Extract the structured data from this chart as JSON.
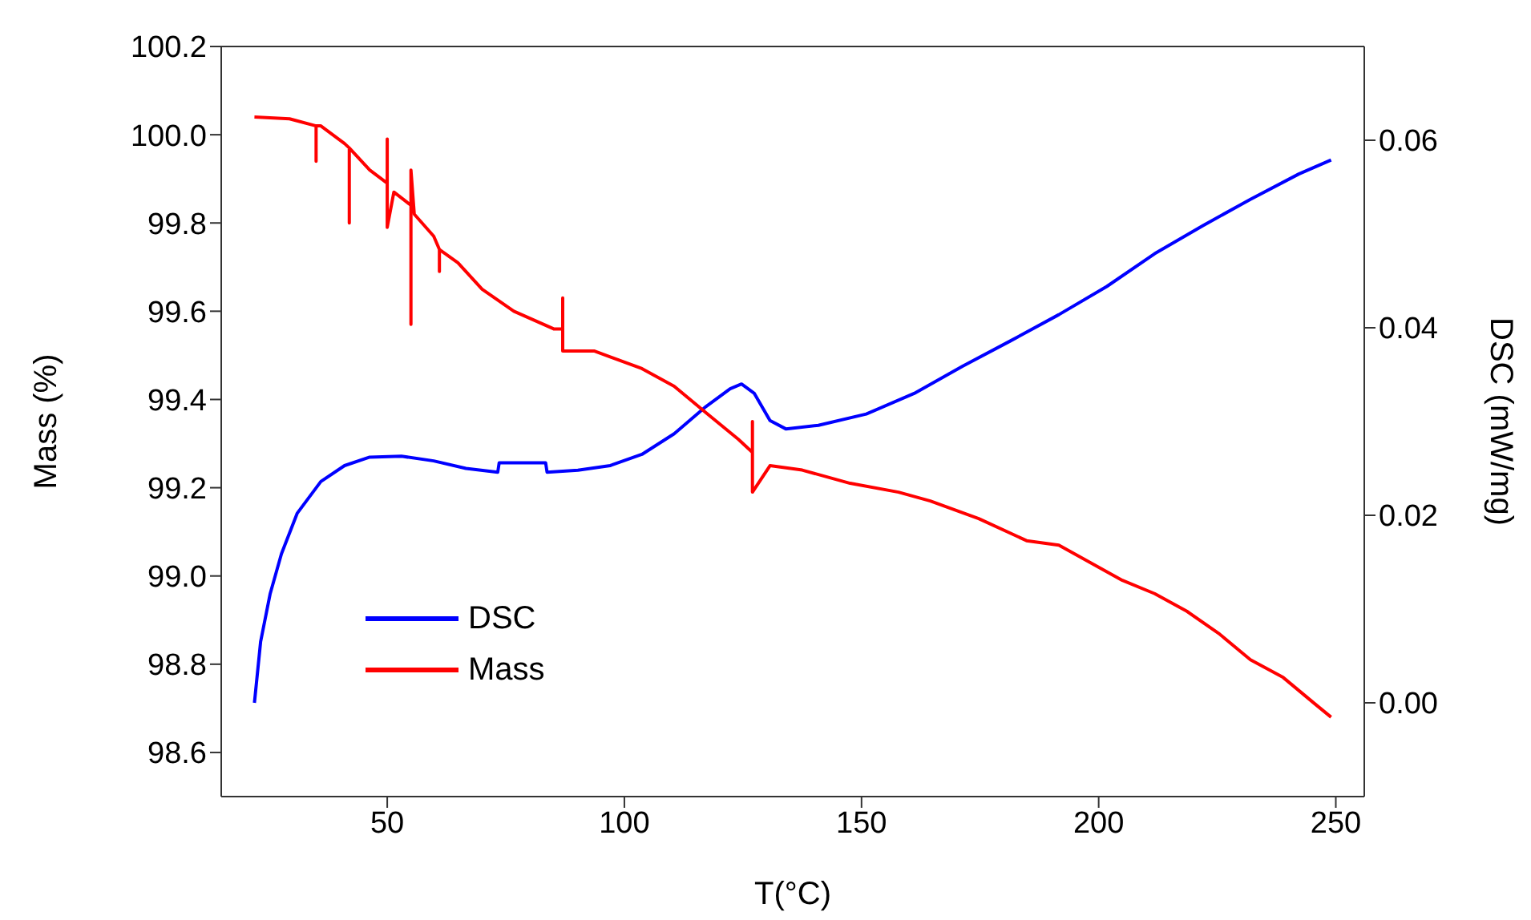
{
  "chart_data": {
    "type": "line",
    "xlabel": "T(°C)",
    "ylabel": "Mass (%)",
    "y2label": "DSC (mW/mg)",
    "xlim": [
      15,
      256
    ],
    "xticks": [
      50,
      100,
      150,
      200,
      250
    ],
    "ylim": [
      98.5,
      100.2
    ],
    "yticks": [
      {
        "value": 98.6,
        "label": "98.6"
      },
      {
        "value": 98.8,
        "label": "98.8"
      },
      {
        "value": 99,
        "label": "99.0"
      },
      {
        "value": 99.2,
        "label": "99.2"
      },
      {
        "value": 99.4,
        "label": "99.4"
      },
      {
        "value": 99.6,
        "label": "99.6"
      },
      {
        "value": 99.8,
        "label": "99.8"
      },
      {
        "value": 100,
        "label": "100.0"
      },
      {
        "value": 100.2,
        "label": "100.2"
      }
    ],
    "y2lim": [
      -0.01,
      0.07
    ],
    "y2ticks": [
      {
        "value": 0,
        "label": "0.00"
      },
      {
        "value": 0.02,
        "label": "0.02"
      },
      {
        "value": 0.04,
        "label": "0.04"
      },
      {
        "value": 0.06,
        "label": "0.06"
      }
    ],
    "grid": false,
    "legend": "bottom left",
    "marker": "none",
    "line_style": "solid",
    "series": [
      {
        "name": "DSC",
        "color": "#0000ff",
        "axis": "y2",
        "x": [
          22,
          23.3,
          25.3,
          27.7,
          31,
          36,
          41,
          46.3,
          53,
          59.8,
          66.6,
          73.3,
          73.6,
          83.4,
          83.7,
          90.2,
          97,
          103.7,
          110.5,
          117.2,
          122.3,
          124.7,
          127.4,
          130.7,
          134.1,
          140.9,
          151,
          161.1,
          171.3,
          181.4,
          191.6,
          201.7,
          211.8,
          222,
          232,
          242.2,
          249
        ],
        "values": [
          0,
          0.0065,
          0.0116,
          0.0159,
          0.0202,
          0.0236,
          0.0253,
          0.0262,
          0.0263,
          0.0258,
          0.025,
          0.0246,
          0.0256,
          0.0256,
          0.0246,
          0.0248,
          0.0253,
          0.0265,
          0.0287,
          0.0316,
          0.0335,
          0.034,
          0.033,
          0.0301,
          0.0292,
          0.0296,
          0.0308,
          0.033,
          0.0359,
          0.0386,
          0.0414,
          0.0444,
          0.0479,
          0.0509,
          0.0537,
          0.0564,
          0.0579
        ]
      },
      {
        "name": "Mass",
        "color": "#ff0000",
        "axis": "y",
        "x": [
          22,
          29.4,
          35,
          35,
          35,
          36,
          41,
          42,
          42,
          42,
          46.3,
          50,
          50,
          50,
          51.4,
          55,
          55,
          55,
          55.7,
          59.8,
          61,
          61,
          61,
          64.9,
          70,
          76.7,
          85.1,
          87,
          87,
          87,
          93.6,
          103.7,
          110.5,
          117.2,
          124,
          127,
          127,
          127,
          130.7,
          137.5,
          147.6,
          157.8,
          164.5,
          174.7,
          184.8,
          191.6,
          198.3,
          205,
          211.8,
          218.6,
          225.3,
          232,
          238.9,
          245.6,
          249
        ],
        "values": [
          100.04,
          100.036,
          100.02,
          99.94,
          100.02,
          100.02,
          99.98,
          99.97,
          99.8,
          99.97,
          99.92,
          99.89,
          99.99,
          99.79,
          99.87,
          99.84,
          99.57,
          99.92,
          99.82,
          99.77,
          99.74,
          99.69,
          99.74,
          99.71,
          99.65,
          99.6,
          99.56,
          99.56,
          99.63,
          99.51,
          99.51,
          99.47,
          99.43,
          99.37,
          99.31,
          99.28,
          99.35,
          99.19,
          99.25,
          99.24,
          99.21,
          99.19,
          99.17,
          99.13,
          99.08,
          99.07,
          99.03,
          98.99,
          98.96,
          98.92,
          98.87,
          98.81,
          98.77,
          98.71,
          98.68
        ]
      }
    ]
  }
}
